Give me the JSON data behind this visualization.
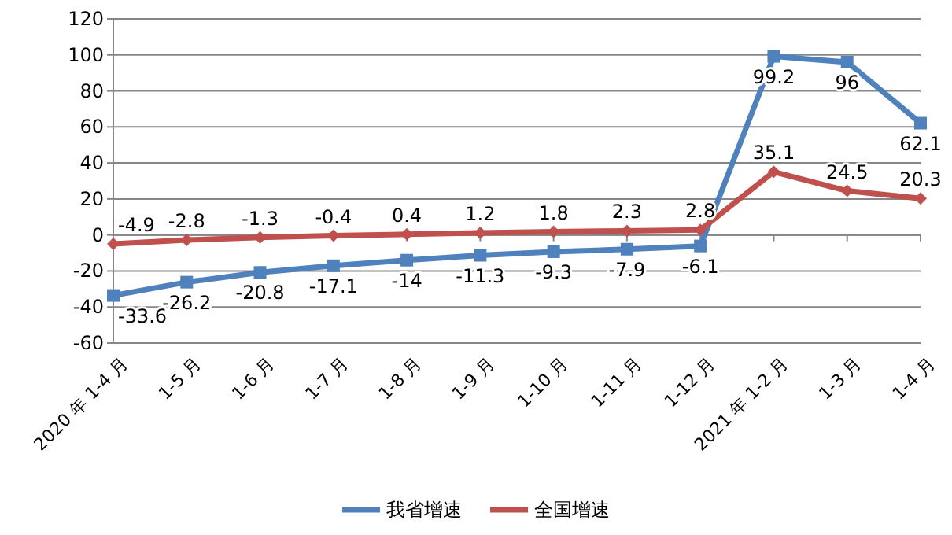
{
  "chart_data": {
    "type": "line",
    "categories": [
      "2020 年 1-4 月",
      "1-5 月",
      "1-6 月",
      "1-7 月",
      "1-8 月",
      "1-9 月",
      "1-10 月",
      "1-11 月",
      "1-12 月",
      "2021 年 1-2 月",
      "1-3 月",
      "1-4 月"
    ],
    "series": [
      {
        "name": "我省增速",
        "color": "#4f81bd",
        "marker": "square",
        "values": [
          -33.6,
          -26.2,
          -20.8,
          -17.1,
          -14,
          -11.3,
          -9.3,
          -7.9,
          -6.1,
          99.2,
          96,
          62.1
        ]
      },
      {
        "name": "全国增速",
        "color": "#c0504d",
        "marker": "diamond",
        "values": [
          -4.9,
          -2.8,
          -1.3,
          -0.4,
          0.4,
          1.2,
          1.8,
          2.3,
          2.8,
          35.1,
          24.5,
          20.3
        ]
      }
    ],
    "ylim": [
      -60,
      120
    ],
    "yticks": [
      -60,
      -40,
      -20,
      0,
      20,
      40,
      60,
      80,
      100,
      120
    ],
    "grid": "y",
    "legend": "bottom",
    "data_labels": true
  }
}
